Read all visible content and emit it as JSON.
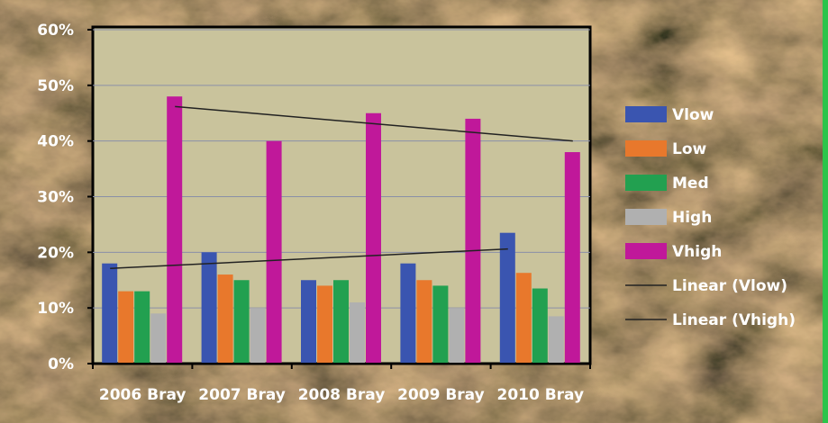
{
  "chart_data": {
    "type": "bar",
    "title": "",
    "xlabel": "",
    "ylabel": "",
    "categories": [
      "2006 Bray",
      "2007 Bray",
      "2008 Bray",
      "2009 Bray",
      "2010 Bray"
    ],
    "ylim": [
      0,
      60
    ],
    "yticks": [
      "0%",
      "10%",
      "20%",
      "30%",
      "40%",
      "50%",
      "60%"
    ],
    "grid": true,
    "legend": "right",
    "series": [
      {
        "name": "Vlow",
        "color": "#3a55b0",
        "values": [
          18,
          20,
          15,
          18,
          23.5
        ]
      },
      {
        "name": "Low",
        "color": "#e8782c",
        "values": [
          13,
          16,
          14,
          15,
          16.3
        ]
      },
      {
        "name": "Med",
        "color": "#22a050",
        "values": [
          13,
          15,
          15,
          14,
          13.5
        ]
      },
      {
        "name": "High",
        "color": "#b0b0b0",
        "values": [
          9,
          10,
          11,
          10,
          8.5
        ]
      },
      {
        "name": "Vhigh",
        "color": "#c0189a",
        "values": [
          48,
          40,
          45,
          44,
          38
        ]
      }
    ],
    "trendlines": [
      {
        "name": "Linear (Vlow)",
        "series": "Vlow",
        "start": 17.1,
        "end": 20.6
      },
      {
        "name": "Linear (Vhigh)",
        "series": "Vhigh",
        "start": 46.2,
        "end": 40.0
      }
    ],
    "colors": {
      "plot_bg": "#c9c39c",
      "gridline": "#8a8fa8",
      "trendline": "#222222",
      "text": "#ffffff",
      "accent_border": "#2bc44a"
    }
  }
}
